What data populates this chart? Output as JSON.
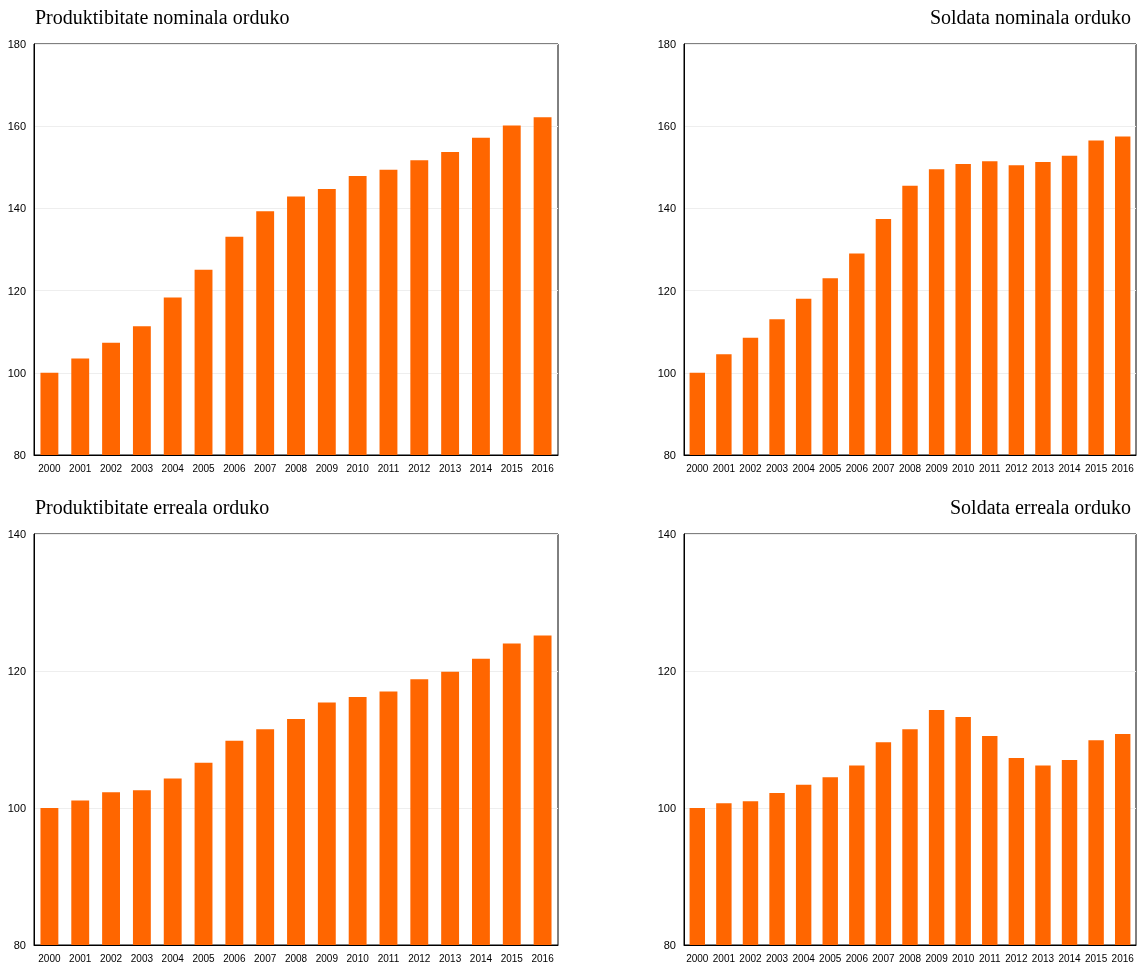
{
  "chart_data": [
    {
      "type": "bar",
      "title": "Produktibitate nominala orduko",
      "categories": [
        "2000",
        "2001",
        "2002",
        "2003",
        "2004",
        "2005",
        "2006",
        "2007",
        "2008",
        "2009",
        "2010",
        "2011",
        "2012",
        "2013",
        "2014",
        "2015",
        "2016"
      ],
      "values": [
        100,
        103.5,
        107.3,
        111.3,
        118.3,
        125.1,
        133.1,
        139.3,
        142.9,
        144.7,
        147.9,
        149.4,
        151.7,
        153.7,
        157.2,
        160.2,
        162.2
      ],
      "color": "#ff6600",
      "ylim": [
        80,
        180
      ],
      "yticks": [
        80,
        100,
        120,
        140,
        160,
        180
      ],
      "grid": "y"
    },
    {
      "type": "bar",
      "title": "Soldata nominala orduko",
      "categories": [
        "2000",
        "2001",
        "2002",
        "2003",
        "2004",
        "2005",
        "2006",
        "2007",
        "2008",
        "2009",
        "2010",
        "2011",
        "2012",
        "2013",
        "2014",
        "2015",
        "2016"
      ],
      "values": [
        100,
        104.5,
        108.5,
        113,
        118,
        123,
        129,
        137.4,
        145.5,
        149.5,
        150.8,
        151.5,
        150.5,
        151.3,
        152.8,
        156.5,
        157.5
      ],
      "color": "#ff6600",
      "ylim": [
        80,
        180
      ],
      "yticks": [
        80,
        100,
        120,
        140,
        160,
        180
      ],
      "grid": "y"
    },
    {
      "type": "bar",
      "title": "Produktibitate erreala orduko",
      "categories": [
        "2000",
        "2001",
        "2002",
        "2003",
        "2004",
        "2005",
        "2006",
        "2007",
        "2008",
        "2009",
        "2010",
        "2011",
        "2012",
        "2013",
        "2014",
        "2015",
        "2016"
      ],
      "values": [
        100,
        101.1,
        102.3,
        102.6,
        104.3,
        106.6,
        109.8,
        111.5,
        113,
        115.4,
        116.2,
        117,
        118.8,
        119.9,
        121.8,
        124,
        125.2
      ],
      "color": "#ff6600",
      "ylim": [
        80,
        140
      ],
      "yticks": [
        80,
        100,
        120,
        140
      ],
      "grid": "y"
    },
    {
      "type": "bar",
      "title": "Soldata erreala orduko",
      "categories": [
        "2000",
        "2001",
        "2002",
        "2003",
        "2004",
        "2005",
        "2006",
        "2007",
        "2008",
        "2009",
        "2010",
        "2011",
        "2012",
        "2013",
        "2014",
        "2015",
        "2016"
      ],
      "values": [
        100,
        100.7,
        101,
        102.2,
        103.4,
        104.5,
        106.2,
        109.6,
        111.5,
        114.3,
        113.3,
        110.5,
        107.3,
        106.2,
        107,
        109.9,
        110.8
      ],
      "color": "#ff6600",
      "ylim": [
        80,
        140
      ],
      "yticks": [
        80,
        100,
        120,
        140
      ],
      "grid": "y"
    }
  ]
}
